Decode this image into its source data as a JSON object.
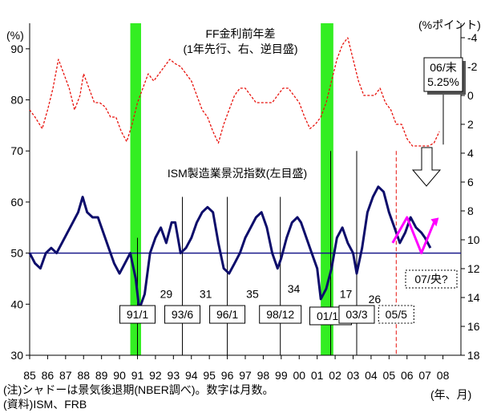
{
  "chart_data": {
    "type": "line",
    "left_unit": "(%)",
    "right_unit": "(%ポイント)",
    "x_unit": "(年、月)",
    "x_tick_labels": [
      "85",
      "86",
      "87",
      "88",
      "89",
      "90",
      "91",
      "92",
      "93",
      "94",
      "95",
      "96",
      "97",
      "98",
      "99",
      "00",
      "01",
      "02",
      "03",
      "04",
      "05",
      "06",
      "07",
      "08"
    ],
    "left_ylim": [
      30,
      95
    ],
    "left_ticks": [
      30,
      40,
      50,
      60,
      70,
      80,
      90
    ],
    "right_ylim": [
      18,
      -5
    ],
    "right_ticks": [
      -4,
      -2,
      0,
      2,
      4,
      6,
      8,
      10,
      12,
      14,
      16,
      18
    ],
    "right_tick_labels": [
      "-4",
      "-2",
      "0",
      "2",
      "4",
      "6",
      "8",
      "10",
      "12",
      "14",
      "16",
      "18"
    ],
    "recessions": [
      {
        "from": 1990.6,
        "to": 1991.2
      },
      {
        "from": 2001.2,
        "to": 2001.9
      }
    ],
    "reference_line": {
      "axis": "left",
      "value": 50,
      "color": "#1a1a8c"
    },
    "series": [
      {
        "name": "ISM製造業景況指数",
        "axis": "left",
        "color": "#0d0d6b",
        "x": [
          1985.0,
          1985.3,
          1985.6,
          1985.9,
          1986.2,
          1986.5,
          1986.8,
          1987.1,
          1987.4,
          1987.7,
          1987.95,
          1988.2,
          1988.5,
          1988.8,
          1989.1,
          1989.4,
          1989.7,
          1990.0,
          1990.3,
          1990.6,
          1990.9,
          1991.1,
          1991.4,
          1991.7,
          1992.0,
          1992.3,
          1992.6,
          1992.9,
          1993.1,
          1993.4,
          1993.7,
          1994.0,
          1994.3,
          1994.6,
          1994.9,
          1995.2,
          1995.5,
          1995.8,
          1996.1,
          1996.4,
          1996.7,
          1997.0,
          1997.3,
          1997.6,
          1997.9,
          1998.2,
          1998.5,
          1998.8,
          1999.0,
          1999.3,
          1999.6,
          1999.9,
          2000.1,
          2000.4,
          2000.7,
          2001.0,
          2001.2,
          2001.5,
          2001.8,
          2002.1,
          2002.4,
          2002.7,
          2003.0,
          2003.2,
          2003.5,
          2003.8,
          2004.1,
          2004.4,
          2004.7,
          2005.0,
          2005.3,
          2005.6,
          2005.9,
          2006.2,
          2006.5,
          2006.8,
          2007.0,
          2007.3
        ],
        "y": [
          50,
          48,
          47,
          50,
          51,
          50,
          52,
          54,
          56,
          58,
          61,
          58,
          57,
          57,
          54,
          51,
          48,
          46,
          48,
          50,
          45,
          39,
          42,
          50,
          53,
          55,
          52,
          56,
          56,
          50,
          51,
          53,
          56,
          58,
          59,
          58,
          52,
          47,
          46,
          48,
          50,
          53,
          55,
          57,
          58,
          55,
          50,
          47,
          49,
          53,
          56,
          57,
          56,
          53,
          50,
          47,
          41,
          43,
          47,
          53,
          55,
          52,
          50,
          46,
          51,
          58,
          61,
          63,
          62,
          58,
          55,
          52,
          54,
          57,
          55,
          54,
          53,
          51
        ]
      },
      {
        "name": "FF金利前年差",
        "axis": "right",
        "color": "#e8120c",
        "x": [
          1985.0,
          1985.3,
          1985.7,
          1986.0,
          1986.3,
          1986.6,
          1986.9,
          1987.2,
          1987.5,
          1987.8,
          1988.0,
          1988.3,
          1988.6,
          1988.9,
          1989.2,
          1989.5,
          1989.8,
          1990.1,
          1990.4,
          1990.7,
          1991.0,
          1991.3,
          1991.6,
          1991.9,
          1992.2,
          1992.5,
          1992.8,
          1993.1,
          1993.4,
          1993.7,
          1994.0,
          1994.3,
          1994.6,
          1994.9,
          1995.2,
          1995.5,
          1995.8,
          1996.1,
          1996.4,
          1996.7,
          1997.0,
          1997.3,
          1997.6,
          1997.9,
          1998.2,
          1998.5,
          1998.8,
          1999.1,
          1999.4,
          1999.7,
          2000.0,
          2000.3,
          2000.6,
          2000.9,
          2001.2,
          2001.5,
          2001.8,
          2002.1,
          2002.4,
          2002.7,
          2003.0,
          2003.3,
          2003.6,
          2003.9,
          2004.2,
          2004.5,
          2004.8,
          2005.1,
          2005.4,
          2005.7,
          2006.0,
          2006.3,
          2006.6,
          2006.9,
          2007.2,
          2007.5,
          2007.8
        ],
        "y": [
          1.0,
          1.5,
          2.3,
          1.0,
          -0.5,
          -2.5,
          -1.5,
          -0.5,
          1.0,
          0.0,
          -1.5,
          -0.5,
          0.5,
          0.5,
          0.8,
          1.5,
          1.5,
          2.5,
          3.2,
          2.0,
          0.5,
          -0.5,
          -1.5,
          -1.0,
          -1.5,
          -2.0,
          -2.5,
          -2.2,
          -2.0,
          -1.5,
          -1.0,
          0.0,
          1.0,
          1.5,
          2.5,
          3.3,
          2.0,
          1.0,
          0.0,
          -0.5,
          -0.5,
          0.0,
          0.5,
          0.5,
          0.5,
          0.5,
          0.0,
          -0.5,
          -0.5,
          0.0,
          0.5,
          1.5,
          2.3,
          2.0,
          1.5,
          0.5,
          -1.0,
          -2.5,
          -3.5,
          -4.0,
          -2.5,
          -1.0,
          0.0,
          0.0,
          0.0,
          -0.5,
          0.5,
          1.0,
          2.0,
          2.0,
          3.0,
          3.5,
          3.5,
          3.5,
          3.5,
          3.3,
          2.5
        ]
      },
      {
        "name": "ISM forecast",
        "axis": "left",
        "color": "#ff00ff",
        "x": [
          2005.2,
          2006.0,
          2006.8,
          2007.5
        ],
        "y": [
          52,
          57,
          50,
          56
        ]
      }
    ],
    "annotations": {
      "ism_label": "ISM製造業景況指数(左目盛)",
      "ff_label_line1": "FF金利前年差",
      "ff_label_line2": "(1年先行、右、逆目盛)",
      "rate_box_line1": "06/末",
      "rate_box_line2": "5.25%",
      "forecast_box": "07/央?",
      "durations": [
        {
          "text": "29",
          "x": 1992.6,
          "y": 42
        },
        {
          "text": "31",
          "x": 1994.8,
          "y": 42
        },
        {
          "text": "35",
          "x": 1997.4,
          "y": 42
        },
        {
          "text": "34",
          "x": 1999.7,
          "y": 43
        },
        {
          "text": "17",
          "x": 2002.6,
          "y": 42
        },
        {
          "text": "26",
          "x": 2004.2,
          "y": 41
        }
      ],
      "date_boxes": [
        {
          "text": "91/1",
          "x": 1991.0,
          "y": 38,
          "line_top": 53,
          "dashed": false
        },
        {
          "text": "93/6",
          "x": 1993.5,
          "y": 38,
          "line_top": 61,
          "dashed": false
        },
        {
          "text": "96/1",
          "x": 1996.0,
          "y": 38,
          "line_top": 61,
          "dashed": false
        },
        {
          "text": "98/12",
          "x": 1998.95,
          "y": 38,
          "line_top": 61,
          "dashed": false
        },
        {
          "text": "01/10",
          "x": 2001.75,
          "y": 37.7,
          "line_top": 70,
          "dashed": false
        },
        {
          "text": "03/3",
          "x": 2003.2,
          "y": 38,
          "line_top": 70,
          "dashed": false
        },
        {
          "text": "05/5",
          "x": 2005.4,
          "y": 38,
          "line_top": 70,
          "dashed": true
        }
      ]
    }
  },
  "footer": {
    "note": "(注)シャドーは景気後退期(NBER調べ)。数字は月数。",
    "source": "(資料)ISM、FRB"
  }
}
